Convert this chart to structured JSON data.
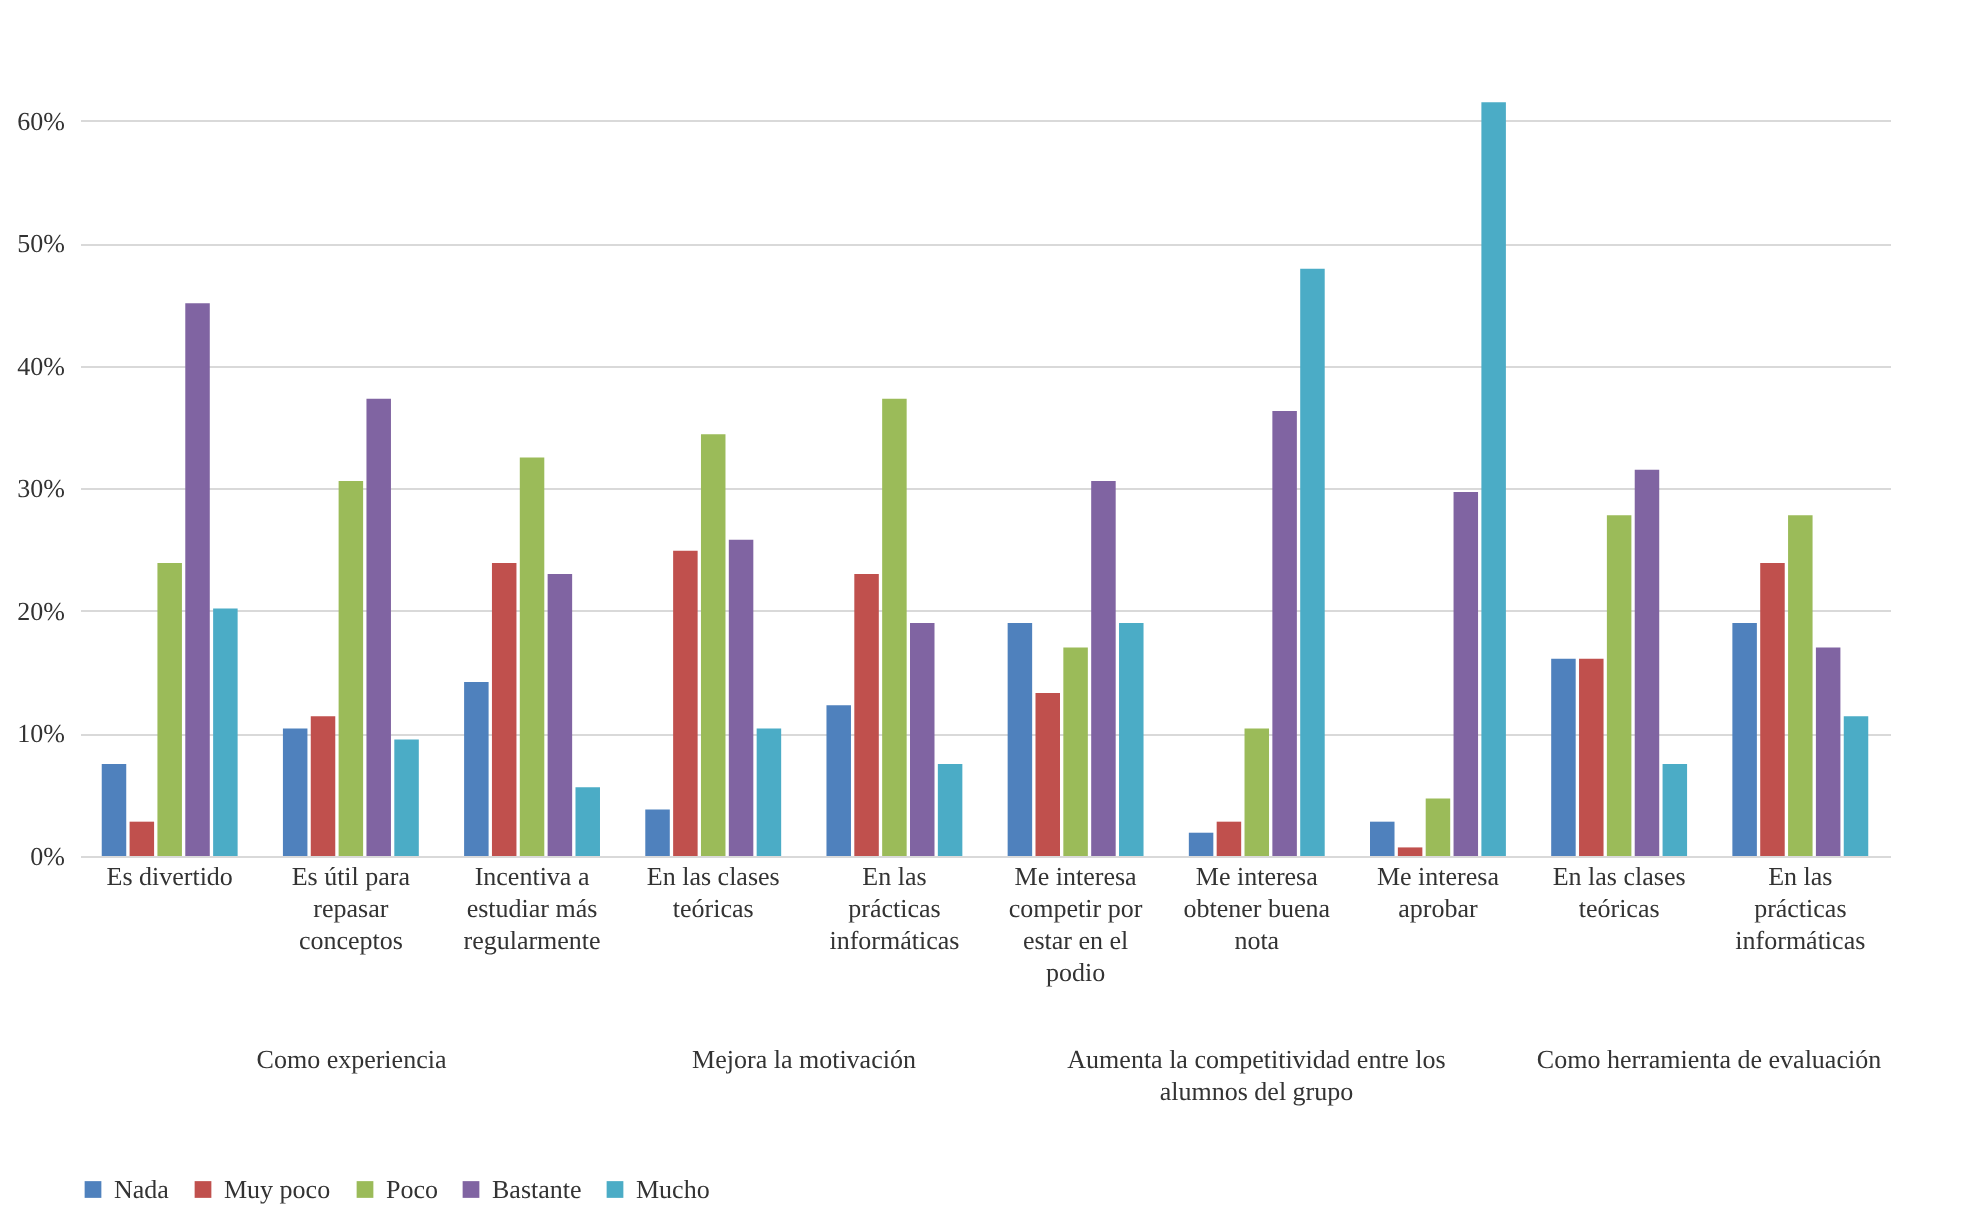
{
  "chart_data": {
    "type": "bar",
    "categories": [
      "Es divertido",
      "Es útil para repasar conceptos",
      "Incentiva a estudiar más regularmente",
      "En las clases teóricas",
      "En las prácticas informáticas",
      "Me interesa competir por estar en el podio",
      "Me interesa obtener buena nota",
      "Me interesa aprobar",
      "En las clases teóricas",
      "En las prácticas informáticas"
    ],
    "series": [
      {
        "name": "Nada",
        "color": "#4f81bd",
        "values": [
          7.5,
          10.4,
          14.2,
          3.8,
          12.3,
          19.0,
          1.9,
          2.8,
          16.1,
          19.0
        ]
      },
      {
        "name": "Muy poco",
        "color": "#c0504d",
        "values": [
          2.8,
          11.4,
          23.9,
          24.9,
          23.0,
          13.3,
          2.8,
          0.7,
          16.1,
          23.9
        ]
      },
      {
        "name": "Poco",
        "color": "#9bbb59",
        "values": [
          23.9,
          30.6,
          32.5,
          34.4,
          37.3,
          17.0,
          10.4,
          4.7,
          27.8,
          27.8
        ]
      },
      {
        "name": "Bastante",
        "color": "#8064a2",
        "values": [
          45.1,
          37.3,
          23.0,
          25.8,
          19.0,
          30.6,
          36.3,
          29.7,
          31.5,
          17.0
        ]
      },
      {
        "name": "Mucho",
        "color": "#4bacc6",
        "values": [
          20.2,
          9.5,
          5.6,
          10.4,
          7.5,
          19.0,
          47.9,
          61.5,
          7.5,
          11.4
        ]
      }
    ],
    "ylim": [
      0,
      62
    ],
    "yticks": [
      {
        "value": 0,
        "label": "0%"
      },
      {
        "value": 10,
        "label": "10%"
      },
      {
        "value": 20,
        "label": "20%"
      },
      {
        "value": 30,
        "label": "30%"
      },
      {
        "value": 40,
        "label": "40%"
      },
      {
        "value": 50,
        "label": "50%"
      },
      {
        "value": 60,
        "label": "60%"
      }
    ],
    "annotations": [
      "Como experiencia",
      "Mejora la motivación",
      "Aumenta la competitividad entre los alumnos del grupo",
      "Como herramienta de evaluación"
    ],
    "grid": "y",
    "legend": "bottom"
  }
}
